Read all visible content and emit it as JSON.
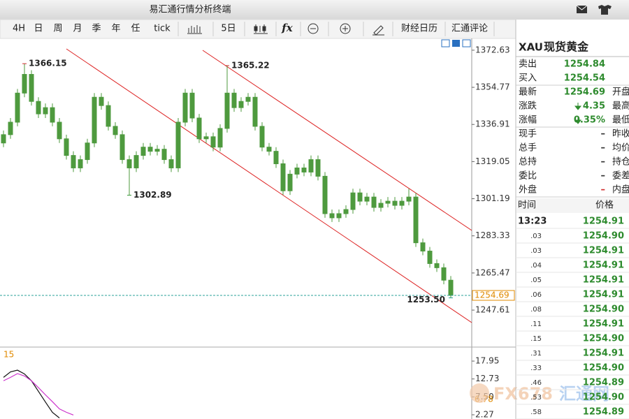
{
  "window": {
    "title": "易汇通行情分析终端"
  },
  "toolbar": [
    "4H",
    "日",
    "周",
    "月",
    "季",
    "年",
    "任",
    "tick",
    "5日",
    "财经日历",
    "汇通评论"
  ],
  "chart_data": [
    {
      "type": "candlestick",
      "up_color": "#4e9a3e",
      "down_color": "#4e9a3e",
      "ylim": [
        1230.5,
        1378.3
      ],
      "yticks": [
        1372.63,
        1354.77,
        1336.91,
        1319.05,
        1301.19,
        1283.33,
        1265.47,
        1247.61
      ],
      "open": [
        1328,
        1332,
        1338,
        1352,
        1361,
        1348,
        1342,
        1345,
        1338,
        1330,
        1322,
        1316,
        1320,
        1328,
        1350,
        1346,
        1336,
        1332,
        1320,
        1316,
        1322,
        1326,
        1324,
        1325,
        1320,
        1316,
        1338,
        1352,
        1340,
        1330,
        1331,
        1326,
        1335,
        1352,
        1345,
        1348,
        1350,
        1336,
        1326,
        1324,
        1318,
        1305,
        1313,
        1316,
        1314,
        1320,
        1312,
        1294,
        1292,
        1294,
        1296,
        1304,
        1300,
        1302,
        1297,
        1299,
        1300,
        1298,
        1300,
        1302,
        1280,
        1276,
        1270,
        1268,
        1262
      ],
      "high": [
        1334,
        1340,
        1354,
        1366.15,
        1363,
        1350,
        1347,
        1347,
        1340,
        1332,
        1324,
        1322,
        1330,
        1352,
        1352,
        1348,
        1338,
        1334,
        1322,
        1324,
        1328,
        1328,
        1327,
        1327,
        1322,
        1340,
        1354,
        1354,
        1342,
        1333,
        1333,
        1337,
        1365.22,
        1354,
        1350,
        1352,
        1352,
        1338,
        1328,
        1326,
        1320,
        1315,
        1318,
        1318,
        1322,
        1322,
        1314,
        1296,
        1296,
        1298,
        1306,
        1306,
        1304,
        1304,
        1301,
        1302,
        1302,
        1302,
        1306,
        1304,
        1282,
        1278,
        1272,
        1270,
        1264
      ],
      "low": [
        1326,
        1330,
        1336,
        1350,
        1346,
        1340,
        1340,
        1336,
        1328,
        1320,
        1314,
        1314,
        1318,
        1326,
        1344,
        1334,
        1330,
        1318,
        1302.89,
        1314,
        1320,
        1322,
        1322,
        1318,
        1314,
        1314,
        1336,
        1338,
        1328,
        1328,
        1324,
        1324,
        1333,
        1343,
        1343,
        1346,
        1334,
        1324,
        1322,
        1316,
        1303,
        1303,
        1311,
        1312,
        1312,
        1310,
        1292,
        1290,
        1290,
        1292,
        1294,
        1298,
        1298,
        1295,
        1295,
        1297,
        1296,
        1296,
        1298,
        1278,
        1274,
        1268,
        1266,
        1260,
        1253.5
      ],
      "close": [
        1332,
        1338,
        1352,
        1361,
        1348,
        1342,
        1345,
        1338,
        1330,
        1322,
        1316,
        1320,
        1328,
        1350,
        1346,
        1336,
        1332,
        1320,
        1316,
        1322,
        1326,
        1324,
        1325,
        1320,
        1316,
        1338,
        1352,
        1340,
        1330,
        1331,
        1326,
        1335,
        1352,
        1345,
        1348,
        1350,
        1336,
        1326,
        1324,
        1318,
        1305,
        1313,
        1316,
        1314,
        1320,
        1312,
        1294,
        1292,
        1294,
        1296,
        1304,
        1300,
        1302,
        1297,
        1299,
        1300,
        1298,
        1300,
        1302,
        1280,
        1276,
        1270,
        1268,
        1262,
        1254.69
      ],
      "annotations": [
        {
          "value": 1366.15,
          "label": "1366.15",
          "color": "#d23030"
        },
        {
          "value": 1365.22,
          "label": "1365.22",
          "color": "#d23030"
        },
        {
          "value": 1302.89,
          "label": "1302.89",
          "color": "#3c9a3c"
        },
        {
          "value": 1253.5,
          "label": "1253.50",
          "color": "#2aa198"
        }
      ],
      "last_price": {
        "value": 1254.69,
        "label": "1254.69"
      }
    },
    {
      "type": "line",
      "params_label": "15",
      "ylim": [
        1.04,
        21.43
      ],
      "yticks": [
        17.95,
        12.73,
        {
          "value": 7.5,
          "label": "7.50"
        },
        2.27
      ],
      "series": [
        {
          "color": "#111111",
          "values": [
            13.2,
            14.8,
            15.3,
            14.2,
            12.2,
            9.1,
            6.0,
            2.99,
            1.35,
            null,
            null
          ]
        },
        {
          "color": "#cc33cc",
          "values": [
            12.2,
            13.2,
            14.3,
            13.6,
            12.2,
            10.2,
            8.1,
            6.1,
            4.0,
            3.0,
            2.2
          ]
        }
      ],
      "last_value": 6.78
    }
  ],
  "quote": {
    "symbol": "XAU",
    "name": "现货黄金",
    "rows": [
      {
        "label": "卖出",
        "value": "1254.84",
        "color": "#2e8b2e"
      },
      {
        "label": "买入",
        "value": "1254.54",
        "color": "#2e8b2e"
      },
      {
        "label": "最新",
        "value": "1254.69",
        "color": "#2e8b2e",
        "side": "开盘"
      },
      {
        "label": "涨跌",
        "value": "4.35",
        "color": "#2e8b2e",
        "arrow": "down",
        "side": "最高"
      },
      {
        "label": "涨幅",
        "value": "0.35%",
        "color": "#2e8b2e",
        "arrow": "down",
        "side": "最低"
      },
      {
        "label": "现手",
        "value": "–",
        "color": "#333333",
        "side": "昨收"
      },
      {
        "label": "总手",
        "value": "–",
        "color": "#333333",
        "side": "均价"
      },
      {
        "label": "总持",
        "value": "–",
        "color": "#333333",
        "side": "持仓"
      },
      {
        "label": "委比",
        "value": "–",
        "color": "#333333",
        "side": "委差"
      },
      {
        "label": "外盘",
        "value": "–",
        "color": "#d23030",
        "side": "内盘"
      }
    ]
  },
  "ticks": {
    "headers": [
      "时间",
      "价格"
    ],
    "rows": [
      [
        "13:23",
        "1254.91"
      ],
      [
        ".03",
        "1254.90"
      ],
      [
        ".03",
        "1254.91"
      ],
      [
        ".04",
        "1254.91"
      ],
      [
        ".05",
        "1254.91"
      ],
      [
        ".06",
        "1254.91"
      ],
      [
        ".08",
        "1254.90"
      ],
      [
        ".11",
        "1254.91"
      ],
      [
        ".15",
        "1254.90"
      ],
      [
        ".31",
        "1254.91"
      ],
      [
        ".33",
        "1254.90"
      ],
      [
        ".46",
        "1254.89"
      ],
      [
        ".53",
        "1254.90"
      ],
      [
        ".58",
        "1254.89"
      ]
    ]
  },
  "watermark": [
    "FX678",
    "汇通网"
  ]
}
